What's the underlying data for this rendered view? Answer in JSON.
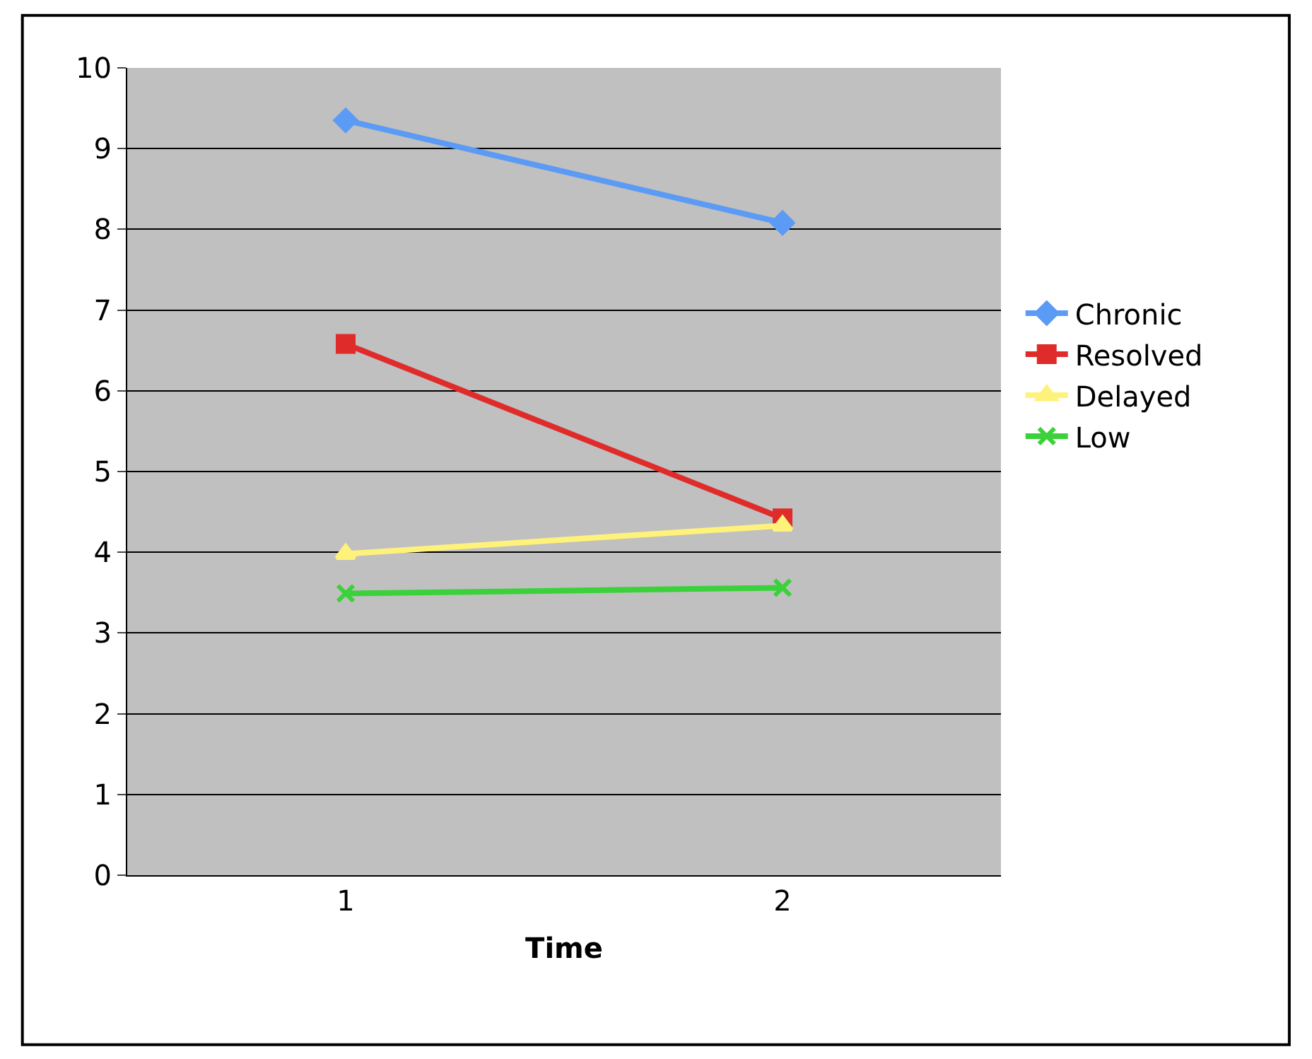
{
  "chart_data": {
    "type": "line",
    "xlabel": "Time",
    "categories": [
      "1",
      "2"
    ],
    "series": [
      {
        "name": "Chronic",
        "color": "#5b9bf5",
        "marker": "diamond",
        "values": [
          9.35,
          8.08
        ]
      },
      {
        "name": "Resolved",
        "color": "#e02b2b",
        "marker": "square",
        "values": [
          6.58,
          4.42
        ]
      },
      {
        "name": "Delayed",
        "color": "#fff27a",
        "marker": "triangle",
        "values": [
          3.98,
          4.33
        ]
      },
      {
        "name": "Low",
        "color": "#3bd13b",
        "marker": "cross",
        "values": [
          3.49,
          3.56
        ]
      }
    ],
    "ylim": [
      0,
      10
    ],
    "yticks": [
      0,
      1,
      2,
      3,
      4,
      5,
      6,
      7,
      8,
      9,
      10
    ],
    "grid": "y",
    "legend": "right"
  }
}
